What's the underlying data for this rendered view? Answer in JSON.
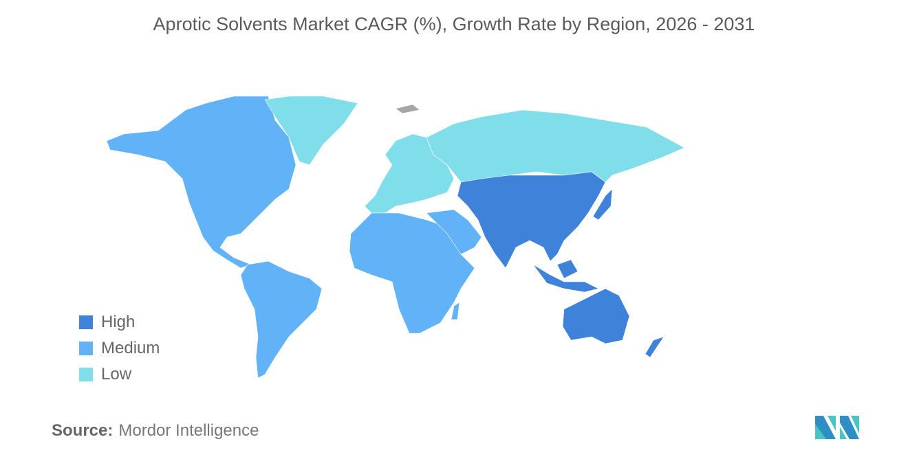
{
  "title": "Aprotic Solvents Market CAGR (%), Growth Rate by Region, 2026 - 2031",
  "legend": [
    {
      "label": "High",
      "color": "#3f82d9"
    },
    {
      "label": "Medium",
      "color": "#62b2f7"
    },
    {
      "label": "Low",
      "color": "#7fdeea"
    }
  ],
  "regions": {
    "north_america": "Medium",
    "south_america": "Medium",
    "africa": "Medium",
    "middle_east": "Medium",
    "europe": "Low",
    "russia": "Low",
    "greenland": "Low",
    "asia_pacific": "High"
  },
  "no_data_color": "#a6a6a6",
  "source": {
    "label": "Source:",
    "value": "Mordor Intelligence"
  }
}
